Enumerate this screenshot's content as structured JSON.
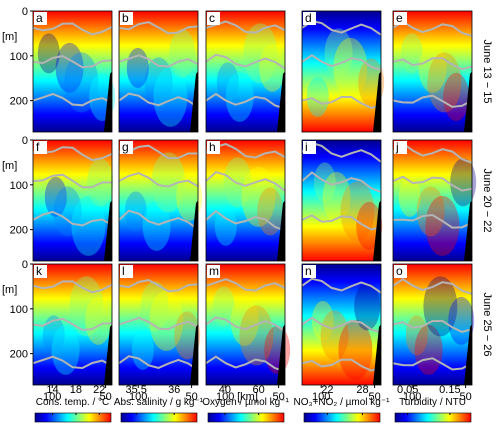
{
  "chart_data": {
    "type": "heatmap",
    "rows": [
      {
        "label": "June 13 − 15",
        "panels": [
          "a",
          "b",
          "c",
          "d",
          "e"
        ]
      },
      {
        "label": "June 20 − 22",
        "panels": [
          "f",
          "g",
          "h",
          "i",
          "j"
        ]
      },
      {
        "label": "June 25 − 26",
        "panels": [
          "k",
          "l",
          "m",
          "n",
          "o"
        ]
      }
    ],
    "y_axis": {
      "unit_label": "[m]",
      "ticks": [
        0,
        100,
        200
      ],
      "range": [
        0,
        270
      ],
      "inverted": true
    },
    "x_axis": {
      "ticks": [
        100,
        50
      ],
      "unit_label": "[km]",
      "range": [
        118,
        44
      ],
      "reversed": true
    },
    "columns": [
      {
        "variable": "Cons. temp. / °C",
        "colorbar_ticks": [
          14,
          18,
          22
        ],
        "range": [
          11,
          24
        ],
        "surface_high": true,
        "colormap": [
          "#00008f",
          "#0000ff",
          "#0080ff",
          "#00ffff",
          "#80ff80",
          "#ffff00",
          "#ff8000",
          "#ff0000"
        ]
      },
      {
        "variable": "Abs. salinity / g kg⁻¹",
        "colorbar_ticks": [
          35.5,
          36
        ],
        "range": [
          35.3,
          36.3
        ],
        "surface_high": true,
        "colormap": [
          "#00008f",
          "#0000ff",
          "#0080ff",
          "#00ffff",
          "#80ff80",
          "#ffff00",
          "#ff8000",
          "#ff0000"
        ]
      },
      {
        "variable": "Oxygen / µmol kg⁻¹",
        "colorbar_ticks": [
          40,
          60
        ],
        "range": [
          30,
          75
        ],
        "surface_high": true,
        "colormap": [
          "#00008f",
          "#0000ff",
          "#0080ff",
          "#00ffff",
          "#80ff80",
          "#ffff00",
          "#ff8000",
          "#ff0000"
        ]
      },
      {
        "variable": "NO₃+NO₂ / µmol kg⁻¹",
        "colorbar_ticks": [
          22,
          28
        ],
        "range": [
          18,
          31
        ],
        "surface_high": false,
        "colormap": [
          "#00008f",
          "#0000ff",
          "#0080ff",
          "#00ffff",
          "#80ff80",
          "#ffff00",
          "#ff8000",
          "#ff0000"
        ]
      },
      {
        "variable": "Turbidity / NTU",
        "colorbar_ticks": [
          0.05,
          0.15
        ],
        "range": [
          0.02,
          0.2
        ],
        "surface_high": true,
        "colormap": [
          "#00008f",
          "#0000ff",
          "#0080ff",
          "#00ffff",
          "#80ff80",
          "#ffff00",
          "#ff8000",
          "#ff0000"
        ]
      }
    ],
    "contour_color": "#b4b4b4",
    "bottom_color": "#000000"
  }
}
